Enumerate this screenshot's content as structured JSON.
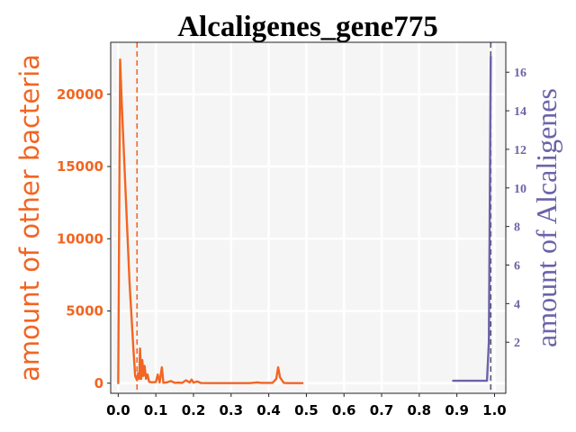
{
  "chart_data": {
    "type": "line",
    "title": "Alcaligenes_gene775",
    "ylabel_left": "amount of other bacteria",
    "ylabel_right": "amount of Alcaligenes",
    "xlim": [
      -0.02,
      1.03
    ],
    "ylim_left": [
      -700,
      23600
    ],
    "ylim_right": [
      -0.65,
      17.55
    ],
    "x_ticks": [
      0.0,
      0.1,
      0.2,
      0.3,
      0.4,
      0.5,
      0.6,
      0.7,
      0.8,
      0.9,
      1.0
    ],
    "x_tick_labels": [
      "0.0",
      "0.1",
      "0.2",
      "0.3",
      "0.4",
      "0.5",
      "0.6",
      "0.7",
      "0.8",
      "0.9",
      "1.0"
    ],
    "y_left_ticks": [
      0,
      5000,
      10000,
      15000,
      20000
    ],
    "y_left_tick_labels": [
      "0",
      "5000",
      "10000",
      "15000",
      "20000"
    ],
    "y_right_ticks": [
      2,
      4,
      6,
      8,
      10,
      12,
      14,
      16
    ],
    "y_right_tick_labels": [
      "2",
      "4",
      "6",
      "8",
      "10",
      "12",
      "14",
      "16"
    ],
    "grid": true,
    "series": [
      {
        "color": "#f26522",
        "axis": "left",
        "points": [
          [
            0.0,
            0
          ],
          [
            0.005,
            22400
          ],
          [
            0.01,
            19000
          ],
          [
            0.02,
            13000
          ],
          [
            0.03,
            7000
          ],
          [
            0.04,
            2500
          ],
          [
            0.045,
            500
          ],
          [
            0.05,
            200
          ],
          [
            0.053,
            700
          ],
          [
            0.056,
            300
          ],
          [
            0.058,
            2400
          ],
          [
            0.061,
            300
          ],
          [
            0.064,
            1600
          ],
          [
            0.067,
            500
          ],
          [
            0.07,
            1200
          ],
          [
            0.074,
            300
          ],
          [
            0.078,
            600
          ],
          [
            0.082,
            100
          ],
          [
            0.09,
            60
          ],
          [
            0.1,
            80
          ],
          [
            0.105,
            600
          ],
          [
            0.11,
            50
          ],
          [
            0.116,
            1100
          ],
          [
            0.12,
            30
          ],
          [
            0.13,
            60
          ],
          [
            0.14,
            150
          ],
          [
            0.15,
            30
          ],
          [
            0.16,
            40
          ],
          [
            0.17,
            20
          ],
          [
            0.18,
            200
          ],
          [
            0.19,
            50
          ],
          [
            0.195,
            250
          ],
          [
            0.2,
            40
          ],
          [
            0.21,
            120
          ],
          [
            0.22,
            10
          ],
          [
            0.25,
            5
          ],
          [
            0.3,
            5
          ],
          [
            0.35,
            5
          ],
          [
            0.37,
            50
          ],
          [
            0.38,
            20
          ],
          [
            0.41,
            20
          ],
          [
            0.42,
            300
          ],
          [
            0.425,
            1100
          ],
          [
            0.43,
            400
          ],
          [
            0.44,
            20
          ],
          [
            0.45,
            5
          ],
          [
            0.47,
            5
          ],
          [
            0.49,
            5
          ]
        ]
      },
      {
        "color": "#6b63a8",
        "axis": "right",
        "points": [
          [
            0.89,
            0
          ],
          [
            0.98,
            0
          ],
          [
            0.985,
            2
          ],
          [
            0.99,
            16.8
          ]
        ]
      }
    ],
    "vlines": [
      {
        "x": 0.05,
        "color": "#f26522"
      },
      {
        "x": 0.99,
        "color": "#5a5a7a"
      }
    ]
  }
}
